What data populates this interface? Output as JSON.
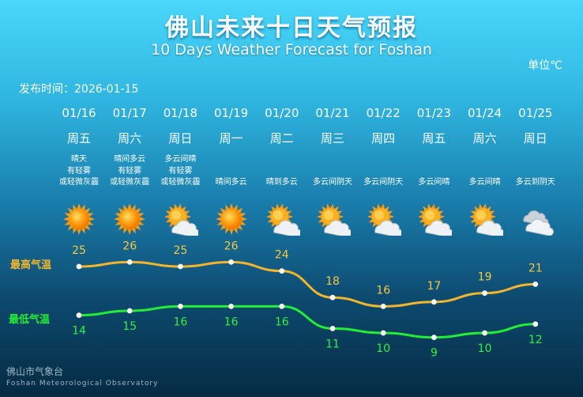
{
  "title_cn": "佛山未来十日天气预报",
  "title_en": "10 Days Weather Forecast for Foshan",
  "unit": "单位℃",
  "publish": "发布时间：2026-01-15",
  "footer_cn": "佛山市气象台",
  "footer_en": "Foshan Meteorological Observatory",
  "colors": {
    "high": "#f2b52c",
    "low": "#22ee33",
    "high_text": "#f5c842",
    "low_text": "#2cf03c"
  },
  "days": [
    {
      "date": "01/16",
      "week": "周五",
      "desc": [
        "晴天",
        "有轻雾",
        "或轻微灰霾"
      ],
      "icon": "sunny-icon"
    },
    {
      "date": "01/17",
      "week": "周六",
      "desc": [
        "晴间多云",
        "有轻雾",
        "或轻微灰霾"
      ],
      "icon": "sunny-icon"
    },
    {
      "date": "01/18",
      "week": "周日",
      "desc": [
        "多云间晴",
        "有轻雾",
        "或轻微灰霾"
      ],
      "icon": "partly-cloudy-icon"
    },
    {
      "date": "01/19",
      "week": "周一",
      "desc": [
        "晴间多云"
      ],
      "icon": "sunny-icon"
    },
    {
      "date": "01/20",
      "week": "周二",
      "desc": [
        "晴到多云"
      ],
      "icon": "partly-cloudy-icon"
    },
    {
      "date": "01/21",
      "week": "周三",
      "desc": [
        "多云间阴天"
      ],
      "icon": "partly-cloudy-icon"
    },
    {
      "date": "01/22",
      "week": "周四",
      "desc": [
        "多云间阴天"
      ],
      "icon": "partly-cloudy-icon"
    },
    {
      "date": "01/23",
      "week": "周五",
      "desc": [
        "多云间晴"
      ],
      "icon": "partly-cloudy-icon"
    },
    {
      "date": "01/24",
      "week": "周六",
      "desc": [
        "多云间晴"
      ],
      "icon": "partly-cloudy-icon"
    },
    {
      "date": "01/25",
      "week": "周日",
      "desc": [
        "多云到阴天"
      ],
      "icon": "overcast-icon"
    }
  ],
  "chart_data": {
    "type": "line",
    "categories": [
      "01/16",
      "01/17",
      "01/18",
      "01/19",
      "01/20",
      "01/21",
      "01/22",
      "01/23",
      "01/24",
      "01/25"
    ],
    "series": [
      {
        "name": "最高气温",
        "values": [
          25,
          26,
          25,
          26,
          24,
          18,
          16,
          17,
          19,
          21
        ]
      },
      {
        "name": "最低气温",
        "values": [
          14,
          15,
          16,
          16,
          16,
          11,
          10,
          9,
          10,
          12
        ]
      }
    ],
    "unit": "单位℃",
    "grid": false,
    "legend": "left"
  }
}
